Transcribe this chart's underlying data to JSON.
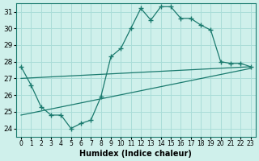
{
  "xlabel": "Humidex (Indice chaleur)",
  "bg_color": "#cff0eb",
  "line_color": "#1a7a6e",
  "grid_color": "#aaddd8",
  "ylim": [
    23.5,
    31.5
  ],
  "xlim": [
    -0.5,
    23.5
  ],
  "yticks": [
    24,
    25,
    26,
    27,
    28,
    29,
    30,
    31
  ],
  "xticks": [
    0,
    1,
    2,
    3,
    4,
    5,
    6,
    7,
    8,
    9,
    10,
    11,
    12,
    13,
    14,
    15,
    16,
    17,
    18,
    19,
    20,
    21,
    22,
    23
  ],
  "line1_x": [
    0,
    23
  ],
  "line1_y": [
    24.8,
    27.6
  ],
  "line2_x": [
    0,
    23
  ],
  "line2_y": [
    27.0,
    27.7
  ],
  "line3_x": [
    0,
    1,
    2,
    3,
    4,
    5,
    6,
    7,
    8,
    9,
    10,
    11,
    12,
    13,
    14,
    15,
    16,
    17,
    18,
    19,
    20,
    21,
    22,
    23
  ],
  "line3_y": [
    27.7,
    26.6,
    25.3,
    24.8,
    24.8,
    24.0,
    24.3,
    24.5,
    25.9,
    28.3,
    28.8,
    30.0,
    31.2,
    30.5,
    31.3,
    31.3,
    30.6,
    30.6,
    30.2,
    29.9,
    28.0,
    27.9,
    27.9,
    27.7
  ]
}
